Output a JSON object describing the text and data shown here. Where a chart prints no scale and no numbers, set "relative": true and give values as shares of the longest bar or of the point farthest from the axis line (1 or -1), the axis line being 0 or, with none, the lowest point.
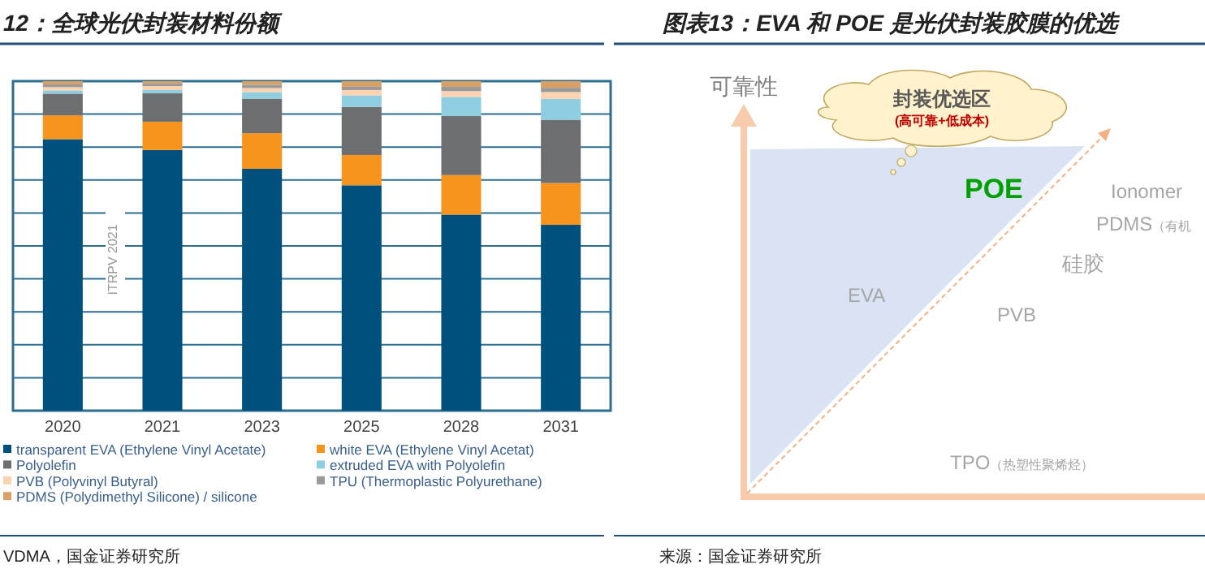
{
  "chart_data": [
    {
      "type": "bar",
      "title": "12：全球光伏封装材料份额",
      "stacked": true,
      "relative": true,
      "legend": "bottom",
      "ref_lines": [
        {
          "axis": "y",
          "value": 0.1
        },
        {
          "axis": "y",
          "value": 0.2
        },
        {
          "axis": "y",
          "value": 0.3
        },
        {
          "axis": "y",
          "value": 0.4
        },
        {
          "axis": "y",
          "value": 0.5
        },
        {
          "axis": "y",
          "value": 0.6
        },
        {
          "axis": "y",
          "value": 0.7
        },
        {
          "axis": "y",
          "value": 0.8
        },
        {
          "axis": "y",
          "value": 0.9
        }
      ],
      "categories": [
        "2020",
        "2021",
        "2023",
        "2025",
        "2028",
        "2031"
      ],
      "series": [
        {
          "name": "transparent EVA (Ethylene Vinyl Acetate)",
          "color": "#00507e",
          "values": [
            0.824,
            0.791,
            0.734,
            0.684,
            0.595,
            0.564
          ]
        },
        {
          "name": "white EVA (Ethylene Vinyl Acetat)",
          "color": "#f7941d",
          "values": [
            0.072,
            0.086,
            0.108,
            0.092,
            0.12,
            0.127
          ]
        },
        {
          "name": "Polyolefin",
          "color": "#6d6e70",
          "values": [
            0.066,
            0.086,
            0.105,
            0.146,
            0.179,
            0.192
          ]
        },
        {
          "name": "extruded EVA with Polyolefin",
          "color": "#8fcde0",
          "values": [
            0.01,
            0.01,
            0.02,
            0.035,
            0.058,
            0.063
          ]
        },
        {
          "name": "PVB (Polyvinyl Butyral)",
          "color": "#fbd3b0",
          "values": [
            0.01,
            0.012,
            0.012,
            0.016,
            0.018,
            0.021
          ]
        },
        {
          "name": "TPU (Thermoplastic Polyurethane)",
          "color": "#9a9a9a",
          "values": [
            0.008,
            0.008,
            0.01,
            0.01,
            0.013,
            0.013
          ]
        },
        {
          "name": "PDMS (Polydimethyl Silicone) / silicone",
          "color": "#d9a066",
          "values": [
            0.01,
            0.007,
            0.011,
            0.017,
            0.017,
            0.02
          ]
        }
      ],
      "annotations": [
        "ITRPV 2021",
        "VDMA，国金证券研究所"
      ]
    },
    {
      "type": "other",
      "title": "图表13：EVA 和 POE 是光伏封装胶膜的优选",
      "annotations": [
        "可靠性",
        "封装优选区",
        "(高可靠+低成本)",
        "POE",
        "Ionomer",
        "PDMS（有机",
        "硅胶",
        "EVA",
        "PVB",
        "TPO（热塑性聚烯烃）",
        "来源：国金证券研究所"
      ]
    }
  ]
}
